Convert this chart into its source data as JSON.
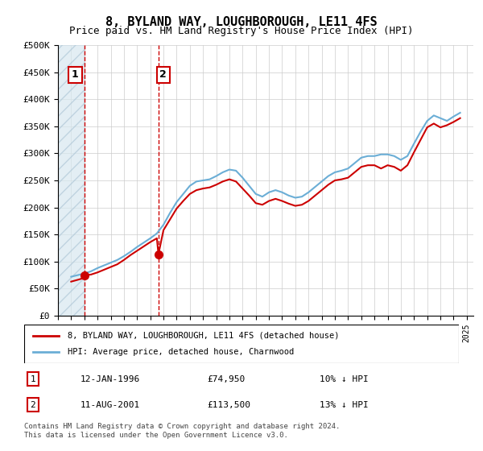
{
  "title": "8, BYLAND WAY, LOUGHBOROUGH, LE11 4FS",
  "subtitle": "Price paid vs. HM Land Registry's House Price Index (HPI)",
  "ylabel_ticks": [
    "£0",
    "£50K",
    "£100K",
    "£150K",
    "£200K",
    "£250K",
    "£300K",
    "£350K",
    "£400K",
    "£450K",
    "£500K"
  ],
  "ytick_values": [
    0,
    50000,
    100000,
    150000,
    200000,
    250000,
    300000,
    350000,
    400000,
    450000,
    500000
  ],
  "xlim_start": 1994.0,
  "xlim_end": 2025.5,
  "ylim": [
    0,
    500000
  ],
  "hpi_color": "#6baed6",
  "price_color": "#cc0000",
  "dashed_line_color": "#cc0000",
  "annotation_box_color": "#cc0000",
  "background_hatch_color": "#d0e0f0",
  "transaction1": {
    "date": "12-JAN-1996",
    "price": 74950,
    "label": "1",
    "x": 1996.04
  },
  "transaction2": {
    "date": "11-AUG-2001",
    "price": 113500,
    "label": "2",
    "x": 2001.62
  },
  "legend_line1": "8, BYLAND WAY, LOUGHBOROUGH, LE11 4FS (detached house)",
  "legend_line2": "HPI: Average price, detached house, Charnwood",
  "table_row1": [
    "1",
    "12-JAN-1996",
    "£74,950",
    "10% ↓ HPI"
  ],
  "table_row2": [
    "2",
    "11-AUG-2001",
    "£113,500",
    "13% ↓ HPI"
  ],
  "footer": "Contains HM Land Registry data © Crown copyright and database right 2024.\nThis data is licensed under the Open Government Licence v3.0.",
  "hpi_data_x": [
    1995.0,
    1995.5,
    1996.0,
    1996.5,
    1997.0,
    1997.5,
    1998.0,
    1998.5,
    1999.0,
    1999.5,
    2000.0,
    2000.5,
    2001.0,
    2001.5,
    2002.0,
    2002.5,
    2003.0,
    2003.5,
    2004.0,
    2004.5,
    2005.0,
    2005.5,
    2006.0,
    2006.5,
    2007.0,
    2007.5,
    2008.0,
    2008.5,
    2009.0,
    2009.5,
    2010.0,
    2010.5,
    2011.0,
    2011.5,
    2012.0,
    2012.5,
    2013.0,
    2013.5,
    2014.0,
    2014.5,
    2015.0,
    2015.5,
    2016.0,
    2016.5,
    2017.0,
    2017.5,
    2018.0,
    2018.5,
    2019.0,
    2019.5,
    2020.0,
    2020.5,
    2021.0,
    2021.5,
    2022.0,
    2022.5,
    2023.0,
    2023.5,
    2024.0,
    2024.5
  ],
  "hpi_data_y": [
    72000,
    75000,
    78000,
    82000,
    88000,
    93000,
    98000,
    103000,
    110000,
    118000,
    127000,
    135000,
    143000,
    152000,
    168000,
    190000,
    210000,
    225000,
    240000,
    248000,
    250000,
    252000,
    258000,
    265000,
    270000,
    268000,
    255000,
    240000,
    225000,
    220000,
    228000,
    232000,
    228000,
    222000,
    218000,
    220000,
    228000,
    238000,
    248000,
    258000,
    265000,
    268000,
    272000,
    282000,
    292000,
    295000,
    295000,
    298000,
    298000,
    295000,
    288000,
    295000,
    318000,
    340000,
    360000,
    370000,
    365000,
    360000,
    368000,
    375000
  ],
  "price_data_x": [
    1995.0,
    1995.3,
    1995.6,
    1996.0,
    1996.04,
    1996.5,
    1997.0,
    1997.5,
    1998.0,
    1998.5,
    1999.0,
    1999.5,
    2000.0,
    2000.5,
    2001.0,
    2001.5,
    2001.62,
    2002.0,
    2002.5,
    2003.0,
    2003.5,
    2004.0,
    2004.5,
    2005.0,
    2005.5,
    2006.0,
    2006.5,
    2007.0,
    2007.5,
    2008.0,
    2008.5,
    2009.0,
    2009.5,
    2010.0,
    2010.5,
    2011.0,
    2011.5,
    2012.0,
    2012.5,
    2013.0,
    2013.5,
    2014.0,
    2014.5,
    2015.0,
    2015.5,
    2016.0,
    2016.5,
    2017.0,
    2017.5,
    2018.0,
    2018.5,
    2019.0,
    2019.5,
    2020.0,
    2020.5,
    2021.0,
    2021.5,
    2022.0,
    2022.5,
    2023.0,
    2023.5,
    2024.0,
    2024.5
  ],
  "price_data_y": [
    63000,
    65000,
    67000,
    70000,
    74950,
    76000,
    80000,
    85000,
    90000,
    95000,
    103000,
    112000,
    120000,
    128000,
    136000,
    143000,
    113500,
    158000,
    178000,
    198000,
    212000,
    225000,
    232000,
    235000,
    237000,
    242000,
    248000,
    252000,
    248000,
    235000,
    222000,
    208000,
    205000,
    212000,
    216000,
    212000,
    207000,
    203000,
    205000,
    212000,
    222000,
    232000,
    242000,
    250000,
    252000,
    255000,
    265000,
    275000,
    278000,
    278000,
    272000,
    278000,
    275000,
    268000,
    278000,
    302000,
    325000,
    348000,
    355000,
    348000,
    352000,
    358000,
    365000
  ]
}
